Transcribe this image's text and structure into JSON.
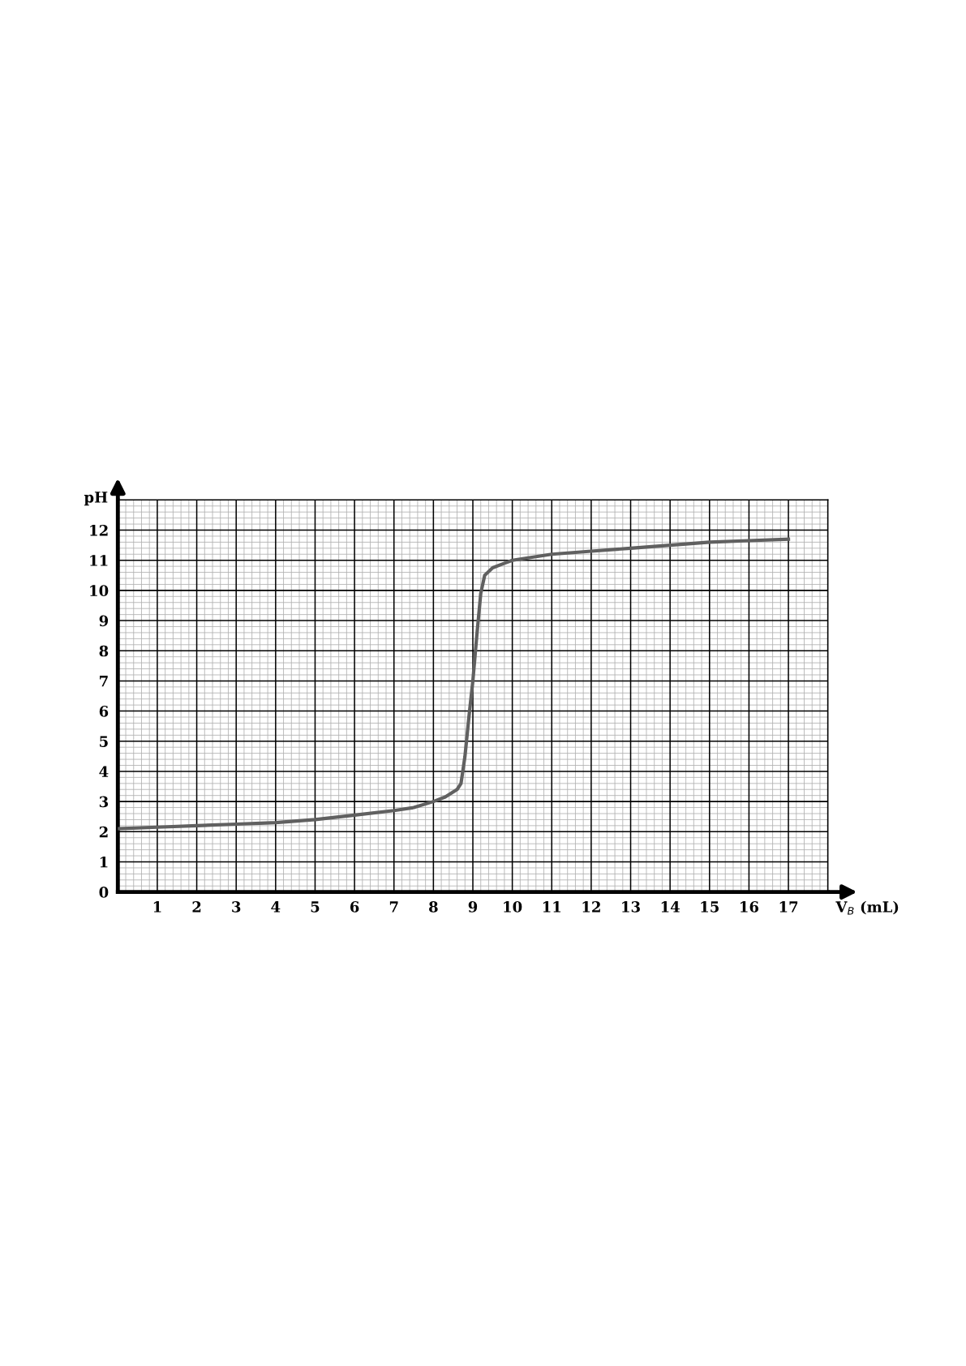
{
  "chart_data": {
    "type": "line",
    "xlabel": "V$_{B}$ (mL)",
    "ylabel": "pH",
    "x": [
      0,
      1,
      2,
      3,
      4,
      5,
      6,
      7,
      7.5,
      8,
      8.3,
      8.6,
      8.7,
      8.8,
      8.9,
      9,
      9.1,
      9.2,
      9.3,
      9.5,
      9.8,
      10,
      10.5,
      11,
      12,
      13,
      14,
      15,
      16,
      17
    ],
    "series": [
      {
        "color": "#606060",
        "values": [
          2.1,
          2.15,
          2.2,
          2.25,
          2.3,
          2.4,
          2.55,
          2.7,
          2.8,
          3.0,
          3.15,
          3.4,
          3.6,
          4.5,
          5.8,
          7.0,
          8.5,
          9.9,
          10.5,
          10.75,
          10.9,
          11.0,
          11.1,
          11.2,
          11.3,
          11.4,
          11.5,
          11.6,
          11.65,
          11.7
        ]
      }
    ],
    "xlim": [
      0,
      18
    ],
    "ylim": [
      0,
      13
    ],
    "xticks": [
      1,
      2,
      3,
      4,
      5,
      6,
      7,
      8,
      9,
      10,
      11,
      12,
      13,
      14,
      15,
      16,
      17,
      {
        "value": 18,
        "label": null
      }
    ],
    "yticks": [
      0,
      1,
      2,
      3,
      4,
      5,
      6,
      7,
      8,
      9,
      10,
      11,
      12,
      {
        "value": 13,
        "label": null
      }
    ],
    "grid": true,
    "line_style": "solid",
    "marker": "none"
  }
}
